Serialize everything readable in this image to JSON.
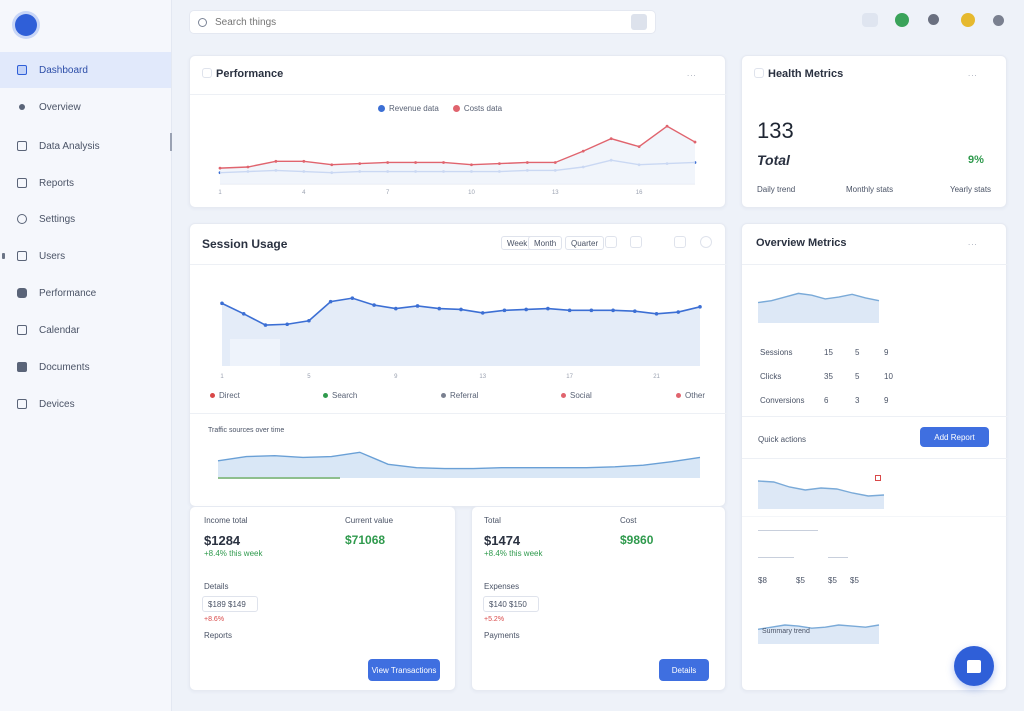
{
  "sidebar": {
    "items": [
      {
        "label": "Dashboard",
        "icon": "dashboard-icon"
      },
      {
        "label": "Overview",
        "icon": "dot-icon"
      },
      {
        "label": "Data Analysis",
        "icon": "list-icon"
      },
      {
        "label": "Reports",
        "icon": "chart-icon"
      },
      {
        "label": "Settings",
        "icon": "settings-icon"
      },
      {
        "label": "Users",
        "icon": "users-icon"
      },
      {
        "label": "Performance",
        "icon": "performance-icon"
      },
      {
        "label": "Calendar",
        "icon": "calendar-icon"
      },
      {
        "label": "Documents",
        "icon": "documents-icon"
      },
      {
        "label": "Devices",
        "icon": "devices-icon"
      }
    ]
  },
  "search": {
    "placeholder": "Search things"
  },
  "colors": {
    "accent": "#2f5fd8",
    "series_blue": "#3c6fd4",
    "series_red": "#e0646e",
    "green": "#2f9a4d"
  },
  "card1": {
    "title": "Performance",
    "more": "...",
    "legend": [
      "Revenue data",
      "Costs data"
    ],
    "chart_data": {
      "type": "line",
      "categories": [
        "1",
        "2",
        "3",
        "4",
        "5",
        "6",
        "7",
        "8",
        "9",
        "10",
        "11",
        "12",
        "13",
        "14",
        "15",
        "16",
        "17",
        "18"
      ],
      "series": [
        {
          "name": "Revenue data",
          "values": [
            10,
            11,
            12,
            11,
            10,
            11,
            11,
            11,
            11,
            11,
            11,
            12,
            12,
            15,
            21,
            17,
            18,
            19
          ]
        },
        {
          "name": "Costs data",
          "values": [
            14,
            15,
            20,
            20,
            17,
            18,
            19,
            19,
            19,
            17,
            18,
            19,
            19,
            29,
            40,
            33,
            51,
            37
          ]
        }
      ],
      "ylim": [
        0,
        60
      ]
    }
  },
  "card2": {
    "title": "Health Metrics",
    "more": "...",
    "value": "133",
    "sub": "Total",
    "delta": "9%",
    "labels": [
      "Daily trend",
      "Monthly stats",
      "Yearly stats"
    ]
  },
  "card3": {
    "title": "Session Usage",
    "pills": [
      "Week",
      "Month",
      "Quarter"
    ],
    "legend": [
      "Direct",
      "Search",
      "Referral",
      "Social",
      "Other"
    ],
    "chart_data": {
      "type": "area",
      "categories": [
        "1",
        "2",
        "3",
        "4",
        "5",
        "6",
        "7",
        "8",
        "9",
        "10",
        "11",
        "12",
        "13",
        "14",
        "15",
        "16",
        "17",
        "18",
        "19",
        "20",
        "21",
        "22",
        "23"
      ],
      "series": [
        {
          "name": "Sessions",
          "values": [
            72,
            60,
            47,
            48,
            52,
            74,
            78,
            70,
            66,
            69,
            66,
            65,
            61,
            64,
            65,
            66,
            64,
            64,
            64,
            63,
            60,
            62,
            68
          ]
        }
      ],
      "ylim": [
        0,
        100
      ]
    },
    "sub_title": "Traffic sources over time",
    "sub_chart": {
      "type": "area",
      "values": [
        20,
        25,
        26,
        24,
        25,
        30,
        16,
        12,
        11,
        11,
        12,
        12,
        12,
        12,
        13,
        15,
        19,
        24
      ]
    }
  },
  "card4": {
    "title": "Overview Metrics",
    "more": "...",
    "table_rows": [
      {
        "label": "Sessions",
        "cols": [
          "15",
          "5",
          "9"
        ]
      },
      {
        "label": "Clicks",
        "cols": [
          "35",
          "5",
          "10"
        ]
      },
      {
        "label": "Conversions",
        "cols": [
          "6",
          "3",
          "9"
        ]
      }
    ],
    "action_label": "Quick actions",
    "action_button": "Add Report",
    "rows2": [
      "$8",
      "$5",
      "$5",
      "$5"
    ],
    "sub_label": "Summary trend"
  },
  "card5": {
    "label1": "Income total",
    "value1": "$1284",
    "label2": "Current value",
    "value2": "$71068",
    "growth": "+8.4% this week",
    "lbl_a": "Details",
    "input_val": "$189  $149",
    "warn": "+8.6%",
    "lbl_b": "Reports",
    "button": "View Transactions"
  },
  "card6": {
    "label1": "Total",
    "value1": "$1474",
    "label2": "Cost",
    "value2": "$9860",
    "growth": "+8.4% this week",
    "lbl_a": "Expenses",
    "input_val": "$140  $150",
    "warn": "+5.2%",
    "lbl_b": "Payments",
    "button": "Details"
  }
}
